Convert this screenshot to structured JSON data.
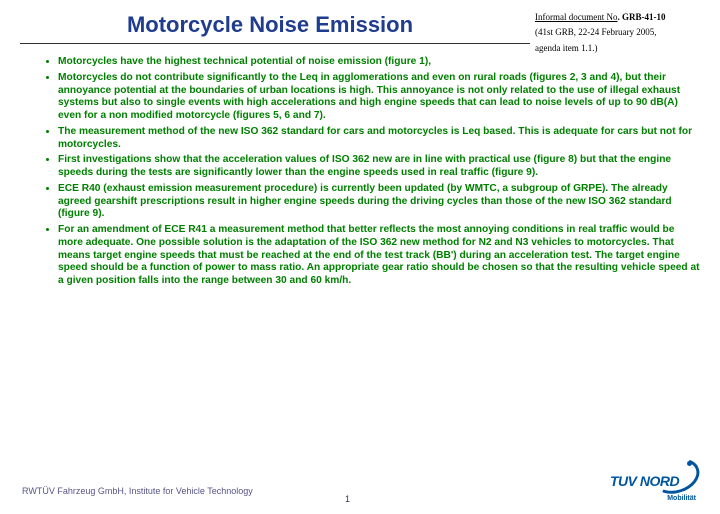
{
  "title": "Motorcycle Noise Emission",
  "docInfo": {
    "line1_prefix": "Informal document No",
    "line1_bold": ". GRB-41-10",
    "line2": "(41st GRB, 22-24 February 2005,",
    "line3": " agenda item 1.1.)"
  },
  "bullets": [
    "Motorcycles have the highest technical potential of noise emission (figure 1),",
    "Motorcycles do not contribute significantly to the Leq in agglomerations and even on rural roads (figures 2, 3 and 4), but their annoyance potential at the boundaries of urban locations is high. This annoyance is not only related to the use of illegal exhaust systems but also to single events with high accelerations and high engine speeds that can lead to noise levels of up to 90 dB(A) even for a non modified motorcycle (figures 5, 6 and 7).",
    "The measurement method of the new ISO 362 standard for cars and motorcycles is Leq based. This is adequate for cars but not for motorcycles.",
    "First investigations show that the acceleration values of ISO 362 new are in line with practical use (figure 8) but that the engine speeds during the tests are significantly lower than the engine speeds used in real traffic (figure 9).",
    "ECE R40 (exhaust emission measurement procedure) is currently been updated (by WMTC, a subgroup of GRPE). The already agreed gearshift prescriptions result in higher engine speeds during the driving cycles than those of the new ISO 362 standard (figure 9).",
    "For an amendment of ECE R41 a measurement method that better reflects the most annoying conditions in real traffic would be more adequate. One possible solution is the adaptation of the ISO 362 new method for N2 and N3 vehicles to motorcycles. That means target engine speeds that must be reached at the end of the test track (BB') during an acceleration test. The target engine speed should be a function of power to mass ratio. An appropriate gear ratio should be chosen so that the resulting vehicle speed at a given position falls into the range between 30 and 60 km/h."
  ],
  "footer": {
    "left": "RWTÜV Fahrzeug GmbH, Institute for Vehicle Technology",
    "pageNum": "1",
    "logoText": "TUV NORD",
    "logoSub": "Mobilität"
  },
  "colors": {
    "titleColor": "#1f3c8f",
    "bulletColor": "#008000",
    "logoColor": "#0055a0"
  }
}
